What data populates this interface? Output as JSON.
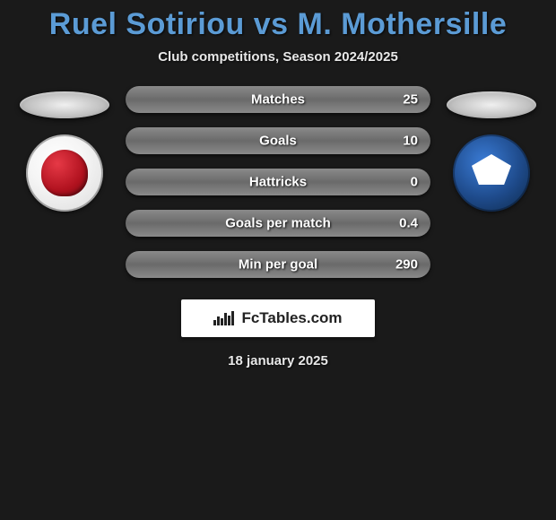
{
  "title": "Ruel Sotiriou vs M. Mothersille",
  "subtitle": "Club competitions, Season 2024/2025",
  "date": "18 january 2025",
  "footer_brand": "FcTables.com",
  "left_team": {
    "primary_color": "#e63946",
    "secondary_color": "#ffffff"
  },
  "right_team": {
    "primary_color": "#1e4a8a",
    "secondary_color": "#ffffff"
  },
  "title_color": "#5b9bd5",
  "bar_bg_gradient": {
    "from": "#2a2a2a",
    "to": "#4a4a4a"
  },
  "bar_fill_gradient": {
    "from": "#6a6a6a",
    "to": "#8a8a8a"
  },
  "stats": [
    {
      "label": "Matches",
      "value": "25",
      "fill_pct": 100
    },
    {
      "label": "Goals",
      "value": "10",
      "fill_pct": 100
    },
    {
      "label": "Hattricks",
      "value": "0",
      "fill_pct": 100
    },
    {
      "label": "Goals per match",
      "value": "0.4",
      "fill_pct": 100
    },
    {
      "label": "Min per goal",
      "value": "290",
      "fill_pct": 100
    }
  ]
}
